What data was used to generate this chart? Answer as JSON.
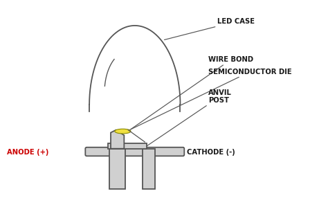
{
  "bg_color": "#ffffff",
  "outline_color": "#555555",
  "fill_gray": "#d0d0d0",
  "fill_white": "#ffffff",
  "fill_yellow": "#f0e040",
  "text_color": "#1a1a1a",
  "anode_color": "#cc0000",
  "label_led_case": "LED CASE",
  "label_wire_bond": "WIRE BOND",
  "label_semi": "SEMICONDUCTOR DIE",
  "label_anvil": "ANVIL\nPOST",
  "label_anode": "ANODE (+)",
  "label_cathode": "CATHODE (-)",
  "font_size": 7.2,
  "font_weight": "bold"
}
